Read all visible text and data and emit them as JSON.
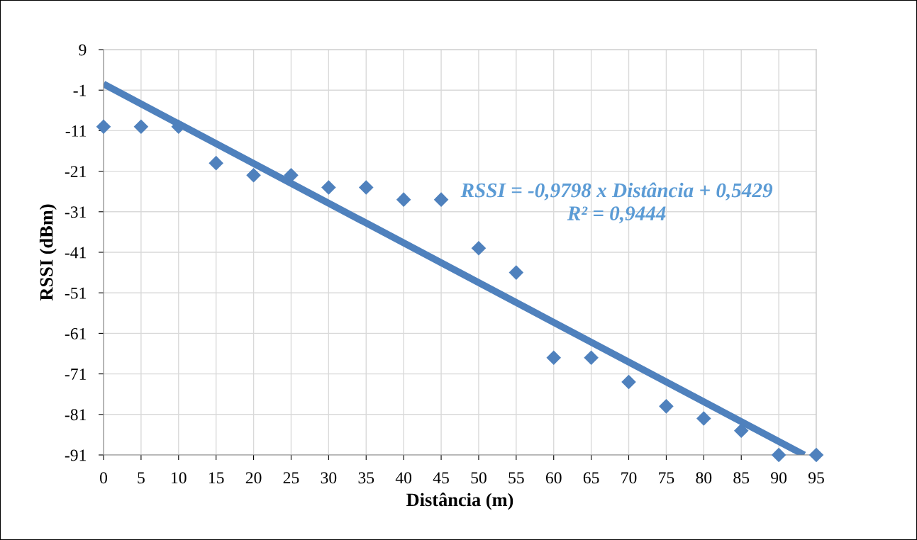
{
  "chart_data": {
    "type": "scatter",
    "xlabel": "Distância (m)",
    "ylabel": "RSSI (dBm)",
    "x": [
      0,
      5,
      10,
      15,
      20,
      25,
      30,
      35,
      40,
      45,
      50,
      55,
      60,
      65,
      70,
      75,
      80,
      85,
      90,
      95
    ],
    "series": [
      {
        "color": "#4f81bd",
        "marker": "diamond",
        "values": [
          -10,
          -10,
          -10,
          -19,
          -22,
          -22,
          -25,
          -25,
          -28,
          -28,
          -40,
          -46,
          -67,
          -67,
          -73,
          -79,
          -82,
          -85,
          -91,
          -91
        ]
      },
      {
        "type": "line",
        "color": "#4f81bd",
        "x": [
          0,
          93.4
        ],
        "values": [
          0.5,
          -91
        ],
        "line_style": "solid"
      }
    ],
    "xlim": [
      0,
      95
    ],
    "xticks": [
      0,
      5,
      10,
      15,
      20,
      25,
      30,
      35,
      40,
      45,
      50,
      55,
      60,
      65,
      70,
      75,
      80,
      85,
      90,
      95
    ],
    "ylim": [
      -91,
      9
    ],
    "yticks": [
      9,
      -1,
      -11,
      -21,
      -31,
      -41,
      -51,
      -61,
      -71,
      -81,
      -91
    ],
    "grid": true,
    "legend": false,
    "annotations": [
      "RSSI = -0,9798 x Distância + 0,5429\nR² = 0,9444"
    ]
  }
}
